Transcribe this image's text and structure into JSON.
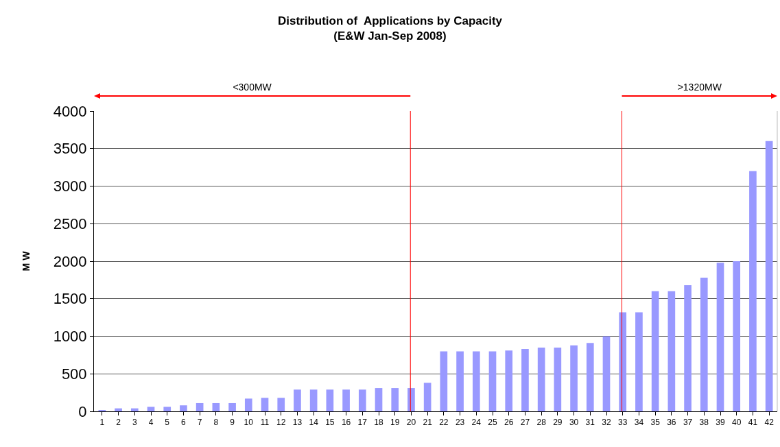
{
  "chart_data": {
    "type": "bar",
    "title": "Distribution of  Applications by Capacity\n(E&W Jan-Sep 2008)",
    "annotations": [
      "<300MW",
      ">1320MW"
    ],
    "ylabel": "M W",
    "x": [
      1,
      2,
      3,
      4,
      5,
      6,
      7,
      8,
      9,
      10,
      11,
      12,
      13,
      14,
      15,
      16,
      17,
      18,
      19,
      20,
      21,
      22,
      23,
      24,
      25,
      26,
      27,
      28,
      29,
      30,
      31,
      32,
      33,
      34,
      35,
      36,
      37,
      38,
      39,
      40,
      41,
      42
    ],
    "values": [
      10,
      40,
      40,
      60,
      60,
      80,
      110,
      110,
      110,
      170,
      180,
      180,
      290,
      290,
      290,
      290,
      290,
      310,
      310,
      310,
      380,
      800,
      800,
      800,
      800,
      810,
      830,
      850,
      850,
      880,
      910,
      1000,
      1320,
      1320,
      1600,
      1600,
      1680,
      1780,
      1980,
      2000,
      3200,
      3600
    ],
    "color": "#9999ff",
    "xlim": [
      0.5,
      42.5
    ],
    "xticks": [
      1,
      2,
      3,
      4,
      5,
      6,
      7,
      8,
      9,
      10,
      11,
      12,
      13,
      14,
      15,
      16,
      17,
      18,
      19,
      20,
      21,
      22,
      23,
      24,
      25,
      26,
      27,
      28,
      29,
      30,
      31,
      32,
      33,
      34,
      35,
      36,
      37,
      38,
      39,
      40,
      41,
      42
    ],
    "ylim": [
      0,
      4000
    ],
    "yticks": [
      0,
      500,
      1000,
      1500,
      2000,
      2500,
      3000,
      3500,
      4000
    ],
    "ref_lines": [
      {
        "axis": "x",
        "value": 19.95,
        "color": "#ff0000"
      },
      {
        "axis": "x",
        "value": 32.95,
        "color": "#ff0000"
      }
    ],
    "grid": "y"
  }
}
